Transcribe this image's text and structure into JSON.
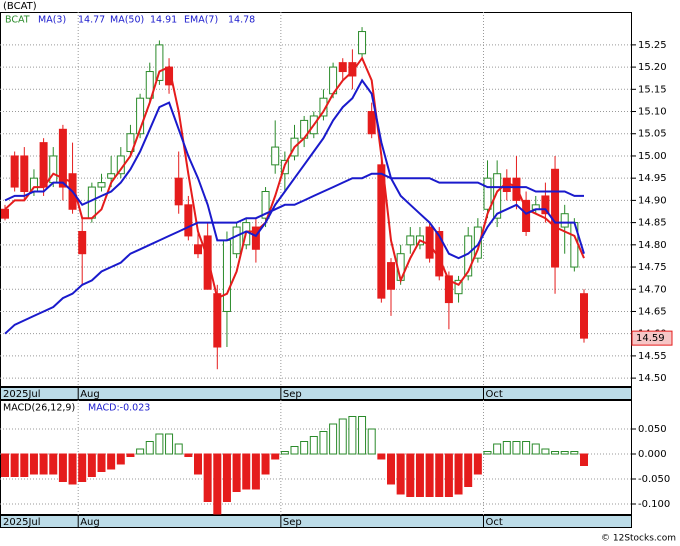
{
  "chart_data": [
    {
      "type": "candlestick",
      "title": "(BCAT)",
      "symbol": "BCAT",
      "categories": [
        "2025Jul",
        null,
        null,
        null,
        null,
        null,
        null,
        null,
        "Aug",
        null,
        null,
        null,
        null,
        null,
        null,
        null,
        null,
        null,
        null,
        null,
        null,
        null,
        null,
        null,
        null,
        null,
        null,
        null,
        null,
        "Sep",
        null,
        null,
        null,
        null,
        null,
        null,
        null,
        null,
        null,
        null,
        null,
        null,
        null,
        null,
        null,
        null,
        null,
        null,
        null,
        null,
        "Oct",
        null,
        null,
        null,
        null,
        null,
        null,
        null,
        null,
        null,
        null
      ],
      "open": [
        14.88,
        15.0,
        15.0,
        14.92,
        15.03,
        14.94,
        15.06,
        14.96,
        14.83,
        14.86,
        14.93,
        14.95,
        14.96,
        15.01,
        15.05,
        15.13,
        15.17,
        15.2,
        14.95,
        14.89,
        14.8,
        14.82,
        14.69,
        14.65,
        14.78,
        14.8,
        14.84,
        14.86,
        14.98,
        14.96,
        15.0,
        15.04,
        15.05,
        15.09,
        15.14,
        15.21,
        15.21,
        15.23,
        15.1,
        14.98,
        14.76,
        14.72,
        14.8,
        14.8,
        14.84,
        14.83,
        14.73,
        14.69,
        14.73,
        14.77,
        14.88,
        14.86,
        14.95,
        14.95,
        14.9,
        14.88,
        14.91,
        14.97,
        14.84,
        14.75,
        14.69
      ],
      "high": [
        14.89,
        15.01,
        15.02,
        14.97,
        15.04,
        15.02,
        15.07,
        15.03,
        14.86,
        14.94,
        14.96,
        15.0,
        15.02,
        15.07,
        15.14,
        15.21,
        15.26,
        15.22,
        15.01,
        14.91,
        14.83,
        14.85,
        14.71,
        14.83,
        14.85,
        14.86,
        14.86,
        14.93,
        15.08,
        15.01,
        15.07,
        15.09,
        15.1,
        15.15,
        15.21,
        15.22,
        15.24,
        15.29,
        15.12,
        14.99,
        14.77,
        14.8,
        14.84,
        14.84,
        14.85,
        14.84,
        14.74,
        14.73,
        14.84,
        14.86,
        14.99,
        14.99,
        14.97,
        15.0,
        14.92,
        14.91,
        14.94,
        15.0,
        14.89,
        14.86,
        14.7
      ],
      "low": [
        14.855,
        14.92,
        14.9,
        14.91,
        14.91,
        14.93,
        14.9,
        14.87,
        14.71,
        14.85,
        14.92,
        14.93,
        14.95,
        15.0,
        15.04,
        15.12,
        15.16,
        15.14,
        14.87,
        14.81,
        14.77,
        14.7,
        14.52,
        14.57,
        14.77,
        14.79,
        14.76,
        14.84,
        14.96,
        14.92,
        14.99,
        15.02,
        15.04,
        15.08,
        15.13,
        15.17,
        15.15,
        15.22,
        15.04,
        14.67,
        14.64,
        14.71,
        14.78,
        14.79,
        14.76,
        14.72,
        14.61,
        14.67,
        14.72,
        14.76,
        14.86,
        14.84,
        14.9,
        14.88,
        14.82,
        14.87,
        14.85,
        14.69,
        14.78,
        14.74,
        14.58
      ],
      "close": [
        14.86,
        14.93,
        14.92,
        14.95,
        14.93,
        15.0,
        14.93,
        14.88,
        14.78,
        14.93,
        14.94,
        14.96,
        15.0,
        15.05,
        15.13,
        15.19,
        15.25,
        15.16,
        14.89,
        14.82,
        14.78,
        14.7,
        14.57,
        14.81,
        14.84,
        14.85,
        14.79,
        14.92,
        15.02,
        14.99,
        15.04,
        15.08,
        15.09,
        15.13,
        15.2,
        15.19,
        15.18,
        15.28,
        15.05,
        14.68,
        14.7,
        14.78,
        14.82,
        14.82,
        14.77,
        14.73,
        14.67,
        14.72,
        14.82,
        14.84,
        14.95,
        14.96,
        14.92,
        14.9,
        14.83,
        14.89,
        14.87,
        14.75,
        14.87,
        14.85,
        14.59
      ],
      "up_color": "#2a8a2a",
      "down_color": "#e51c1c",
      "series": [
        {
          "name": "MA(3)",
          "color": "#e51c1c",
          "values": [
            14.88,
            14.9,
            14.9,
            14.93,
            14.93,
            14.96,
            14.95,
            14.94,
            14.86,
            14.86,
            14.88,
            14.94,
            14.97,
            15.0,
            15.06,
            15.12,
            15.19,
            15.2,
            15.1,
            14.96,
            14.83,
            14.77,
            14.68,
            14.69,
            14.74,
            14.83,
            14.83,
            14.85,
            14.91,
            14.98,
            15.02,
            15.04,
            15.07,
            15.1,
            15.14,
            15.17,
            15.19,
            15.22,
            15.17,
            15.0,
            14.81,
            14.72,
            14.77,
            14.81,
            14.8,
            14.77,
            14.72,
            14.71,
            14.74,
            14.79,
            14.87,
            14.92,
            14.94,
            14.93,
            14.88,
            14.87,
            14.86,
            14.84,
            14.83,
            14.82,
            14.77
          ]
        },
        {
          "name": "MA(50)",
          "color": "#1a1acc",
          "values": [
            14.6,
            14.62,
            14.63,
            14.64,
            14.65,
            14.66,
            14.68,
            14.69,
            14.71,
            14.72,
            14.74,
            14.75,
            14.76,
            14.78,
            14.79,
            14.8,
            14.81,
            14.82,
            14.83,
            14.84,
            14.85,
            14.85,
            14.85,
            14.85,
            14.85,
            14.86,
            14.86,
            14.87,
            14.88,
            14.89,
            14.89,
            14.9,
            14.91,
            14.92,
            14.93,
            14.94,
            14.95,
            14.95,
            14.96,
            14.96,
            14.95,
            14.95,
            14.95,
            14.95,
            14.95,
            14.94,
            14.94,
            14.94,
            14.94,
            14.94,
            14.93,
            14.93,
            14.93,
            14.93,
            14.93,
            14.92,
            14.92,
            14.92,
            14.92,
            14.91,
            14.91
          ]
        },
        {
          "name": "EMA(7)",
          "color": "#1a1acc",
          "values": [
            14.9,
            14.91,
            14.91,
            14.92,
            14.92,
            14.94,
            14.94,
            14.92,
            14.89,
            14.9,
            14.91,
            14.92,
            14.94,
            14.97,
            15.01,
            15.06,
            15.11,
            15.12,
            15.06,
            15.0,
            14.95,
            14.89,
            14.81,
            14.81,
            14.82,
            14.83,
            14.82,
            14.85,
            14.89,
            14.92,
            14.95,
            14.98,
            15.01,
            15.04,
            15.08,
            15.11,
            15.13,
            15.17,
            15.14,
            15.03,
            14.95,
            14.91,
            14.89,
            14.87,
            14.85,
            14.82,
            14.78,
            14.77,
            14.78,
            14.8,
            14.84,
            14.87,
            14.88,
            14.89,
            14.87,
            14.88,
            14.88,
            14.85,
            14.85,
            14.85,
            14.78
          ]
        }
      ],
      "ylim": [
        14.48,
        15.324
      ],
      "yticks": [
        {
          "value": 14.5,
          "label": "14.50"
        },
        14.55,
        {
          "value": 14.6,
          "label": "14.60"
        },
        14.65,
        {
          "value": 14.7,
          "label": "14.70"
        },
        14.75,
        {
          "value": 14.8,
          "label": "14.80"
        },
        14.85,
        {
          "value": 14.9,
          "label": "14.90"
        },
        14.95,
        {
          "value": 15.0,
          "label": "15.00"
        },
        15.05,
        {
          "value": 15.1,
          "label": "15.10"
        },
        15.15,
        {
          "value": 15.2,
          "label": "15.20"
        },
        15.25
      ],
      "grid": true
    },
    {
      "type": "bar",
      "title": "MACD(26,12,9)",
      "current_label": "MACD:-0.023",
      "categories": [
        "2025Jul",
        null,
        null,
        null,
        null,
        null,
        null,
        null,
        "Aug",
        null,
        null,
        null,
        null,
        null,
        null,
        null,
        null,
        null,
        null,
        null,
        null,
        null,
        null,
        null,
        null,
        null,
        null,
        null,
        null,
        "Sep",
        null,
        null,
        null,
        null,
        null,
        null,
        null,
        null,
        null,
        null,
        null,
        null,
        null,
        null,
        null,
        null,
        null,
        null,
        null,
        null,
        "Oct",
        null,
        null,
        null,
        null,
        null,
        null,
        null,
        null,
        null,
        null
      ],
      "values": [
        -0.045,
        -0.045,
        -0.045,
        -0.04,
        -0.04,
        -0.04,
        -0.055,
        -0.06,
        -0.055,
        -0.045,
        -0.035,
        -0.03,
        -0.02,
        -0.005,
        0.01,
        0.025,
        0.04,
        0.04,
        0.02,
        -0.005,
        -0.04,
        -0.095,
        -0.12,
        -0.095,
        -0.075,
        -0.07,
        -0.07,
        -0.04,
        -0.01,
        0.005,
        0.015,
        0.025,
        0.035,
        0.045,
        0.06,
        0.07,
        0.075,
        0.075,
        0.05,
        -0.01,
        -0.06,
        -0.08,
        -0.085,
        -0.085,
        -0.085,
        -0.085,
        -0.085,
        -0.08,
        -0.065,
        -0.04,
        0.005,
        0.02,
        0.025,
        0.025,
        0.025,
        0.02,
        0.01,
        0.005,
        0.005,
        0.005,
        -0.023
      ],
      "up_color": "#2a8a2a",
      "down_color": "#e51c1c",
      "ylim": [
        -0.122,
        0.108
      ],
      "yticks": [
        {
          "value": -0.1,
          "label": "-0.100"
        },
        {
          "value": -0.05,
          "label": "-0.050"
        },
        {
          "value": 0,
          "label": "0.000"
        },
        {
          "value": 0.05,
          "label": "0.050"
        }
      ],
      "grid": true
    }
  ],
  "footer": "© 12Stocks.com"
}
